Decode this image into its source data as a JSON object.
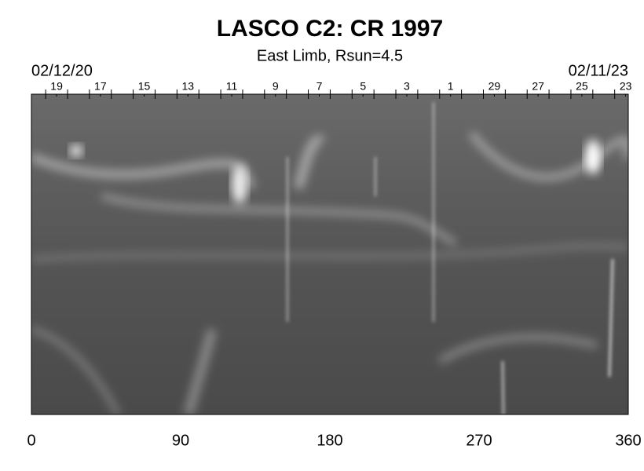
{
  "chart_data": {
    "type": "synoptic-map",
    "title": "LASCO C2: CR 1997",
    "subtitle": "East Limb, Rsun=4.5",
    "start_date": "02/12/20",
    "end_date": "02/11/23",
    "xlim": [
      0,
      360
    ],
    "xticks": [
      0,
      90,
      180,
      270,
      360
    ],
    "x2ticks": [
      {
        "value": 15.2,
        "label": "19"
      },
      {
        "value": 41.6,
        "label": "17"
      },
      {
        "value": 68.0,
        "label": "15"
      },
      {
        "value": 94.4,
        "label": "13"
      },
      {
        "value": 120.8,
        "label": "11"
      },
      {
        "value": 147.2,
        "label": "9"
      },
      {
        "value": 173.6,
        "label": "7"
      },
      {
        "value": 200.0,
        "label": "5"
      },
      {
        "value": 226.4,
        "label": "3"
      },
      {
        "value": 252.8,
        "label": "1"
      },
      {
        "value": 279.2,
        "label": "29"
      },
      {
        "value": 305.6,
        "label": "27"
      },
      {
        "value": 332.0,
        "label": "25"
      },
      {
        "value": 358.4,
        "label": "23"
      }
    ],
    "x2minor_ticks": [
      8.6,
      21.8,
      35.0,
      48.2,
      61.4,
      74.6,
      87.8,
      101.0,
      114.2,
      127.4,
      140.6,
      153.8,
      167.0,
      180.2,
      193.4,
      206.6,
      219.8,
      233.0,
      246.2,
      259.4,
      272.6,
      285.8,
      299.0,
      312.2,
      325.4,
      338.6,
      351.8
    ]
  }
}
